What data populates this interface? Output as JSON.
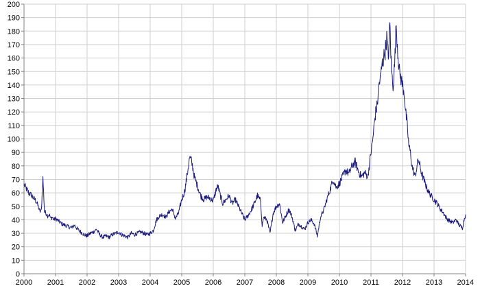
{
  "chart_data": {
    "type": "line",
    "title": "",
    "xlabel": "",
    "ylabel": "",
    "xlim": [
      2000,
      2014
    ],
    "ylim": [
      0,
      200
    ],
    "x_ticks": [
      "2000",
      "2001",
      "2002",
      "2003",
      "2004",
      "2005",
      "2006",
      "2007",
      "2008",
      "2009",
      "2010",
      "2011",
      "2012",
      "2013",
      "2014"
    ],
    "y_ticks": [
      0,
      10,
      20,
      30,
      40,
      50,
      60,
      70,
      80,
      90,
      100,
      110,
      120,
      130,
      140,
      150,
      160,
      170,
      180,
      190,
      200
    ],
    "grid": true,
    "colors": {
      "series": "#1a1a7a",
      "grid": "#cfcfcf",
      "axis": "#808080"
    },
    "series": [
      {
        "x": [
          2000.0,
          2000.05,
          2000.1,
          2000.15,
          2000.2,
          2000.25,
          2000.3,
          2000.35,
          2000.4,
          2000.45,
          2000.5,
          2000.55,
          2000.6,
          2000.65,
          2000.7,
          2000.75,
          2000.8,
          2000.85,
          2000.9,
          2000.95,
          2001.0,
          2001.1,
          2001.2,
          2001.3,
          2001.4,
          2001.5,
          2001.6,
          2001.7,
          2001.8,
          2001.9,
          2002.0,
          2002.1,
          2002.2,
          2002.3,
          2002.4,
          2002.5,
          2002.6,
          2002.7,
          2002.8,
          2002.9,
          2003.0,
          2003.1,
          2003.2,
          2003.3,
          2003.4,
          2003.5,
          2003.6,
          2003.7,
          2003.8,
          2003.9,
          2004.0,
          2004.1,
          2004.2,
          2004.3,
          2004.4,
          2004.5,
          2004.6,
          2004.7,
          2004.8,
          2004.9,
          2005.0,
          2005.05,
          2005.1,
          2005.15,
          2005.2,
          2005.25,
          2005.3,
          2005.35,
          2005.4,
          2005.5,
          2005.6,
          2005.7,
          2005.8,
          2005.9,
          2006.0,
          2006.1,
          2006.15,
          2006.2,
          2006.3,
          2006.4,
          2006.5,
          2006.6,
          2006.7,
          2006.8,
          2006.9,
          2007.0,
          2007.1,
          2007.2,
          2007.3,
          2007.4,
          2007.5,
          2007.55,
          2007.6,
          2007.7,
          2007.8,
          2007.9,
          2008.0,
          2008.1,
          2008.2,
          2008.3,
          2008.4,
          2008.5,
          2008.6,
          2008.7,
          2008.8,
          2008.9,
          2009.0,
          2009.1,
          2009.2,
          2009.3,
          2009.4,
          2009.5,
          2009.6,
          2009.7,
          2009.8,
          2009.9,
          2010.0,
          2010.1,
          2010.2,
          2010.3,
          2010.4,
          2010.5,
          2010.6,
          2010.7,
          2010.8,
          2010.9,
          2011.0,
          2011.05,
          2011.1,
          2011.15,
          2011.2,
          2011.25,
          2011.3,
          2011.35,
          2011.4,
          2011.45,
          2011.5,
          2011.55,
          2011.6,
          2011.65,
          2011.7,
          2011.75,
          2011.8,
          2011.85,
          2011.9,
          2011.95,
          2012.0,
          2012.05,
          2012.1,
          2012.15,
          2012.2,
          2012.25,
          2012.3,
          2012.4,
          2012.5,
          2012.6,
          2012.7,
          2012.8,
          2012.9,
          2013.0,
          2013.1,
          2013.2,
          2013.3,
          2013.4,
          2013.5,
          2013.6,
          2013.7,
          2013.8,
          2013.9,
          2013.95,
          2014.0
        ],
        "values": [
          66,
          64,
          62,
          60,
          59,
          58,
          56,
          55,
          53,
          50,
          46,
          47,
          71,
          46,
          45,
          43,
          44,
          41,
          42,
          40,
          41,
          39,
          37,
          36,
          35,
          34,
          36,
          33,
          31,
          29,
          28,
          30,
          31,
          33,
          29,
          27,
          28,
          27,
          29,
          30,
          31,
          29,
          28,
          27,
          30,
          29,
          30,
          31,
          30,
          29,
          30,
          32,
          40,
          43,
          44,
          42,
          46,
          48,
          41,
          45,
          55,
          58,
          62,
          70,
          78,
          86,
          84,
          79,
          72,
          65,
          58,
          55,
          57,
          56,
          54,
          63,
          65,
          60,
          52,
          55,
          58,
          52,
          55,
          50,
          45,
          40,
          43,
          47,
          52,
          58,
          54,
          36,
          42,
          40,
          30,
          45,
          50,
          52,
          38,
          43,
          48,
          42,
          32,
          37,
          35,
          33,
          38,
          40,
          37,
          28,
          42,
          47,
          55,
          62,
          70,
          64,
          67,
          72,
          77,
          74,
          80,
          83,
          76,
          72,
          75,
          72,
          90,
          98,
          110,
          120,
          125,
          140,
          145,
          155,
          160,
          165,
          175,
          160,
          185,
          150,
          140,
          155,
          185,
          165,
          150,
          145,
          140,
          135,
          120,
          110,
          95,
          90,
          80,
          72,
          85,
          75,
          68,
          62,
          58,
          55,
          52,
          48,
          45,
          41,
          39,
          38,
          40,
          36,
          34,
          40,
          44
        ]
      }
    ]
  }
}
